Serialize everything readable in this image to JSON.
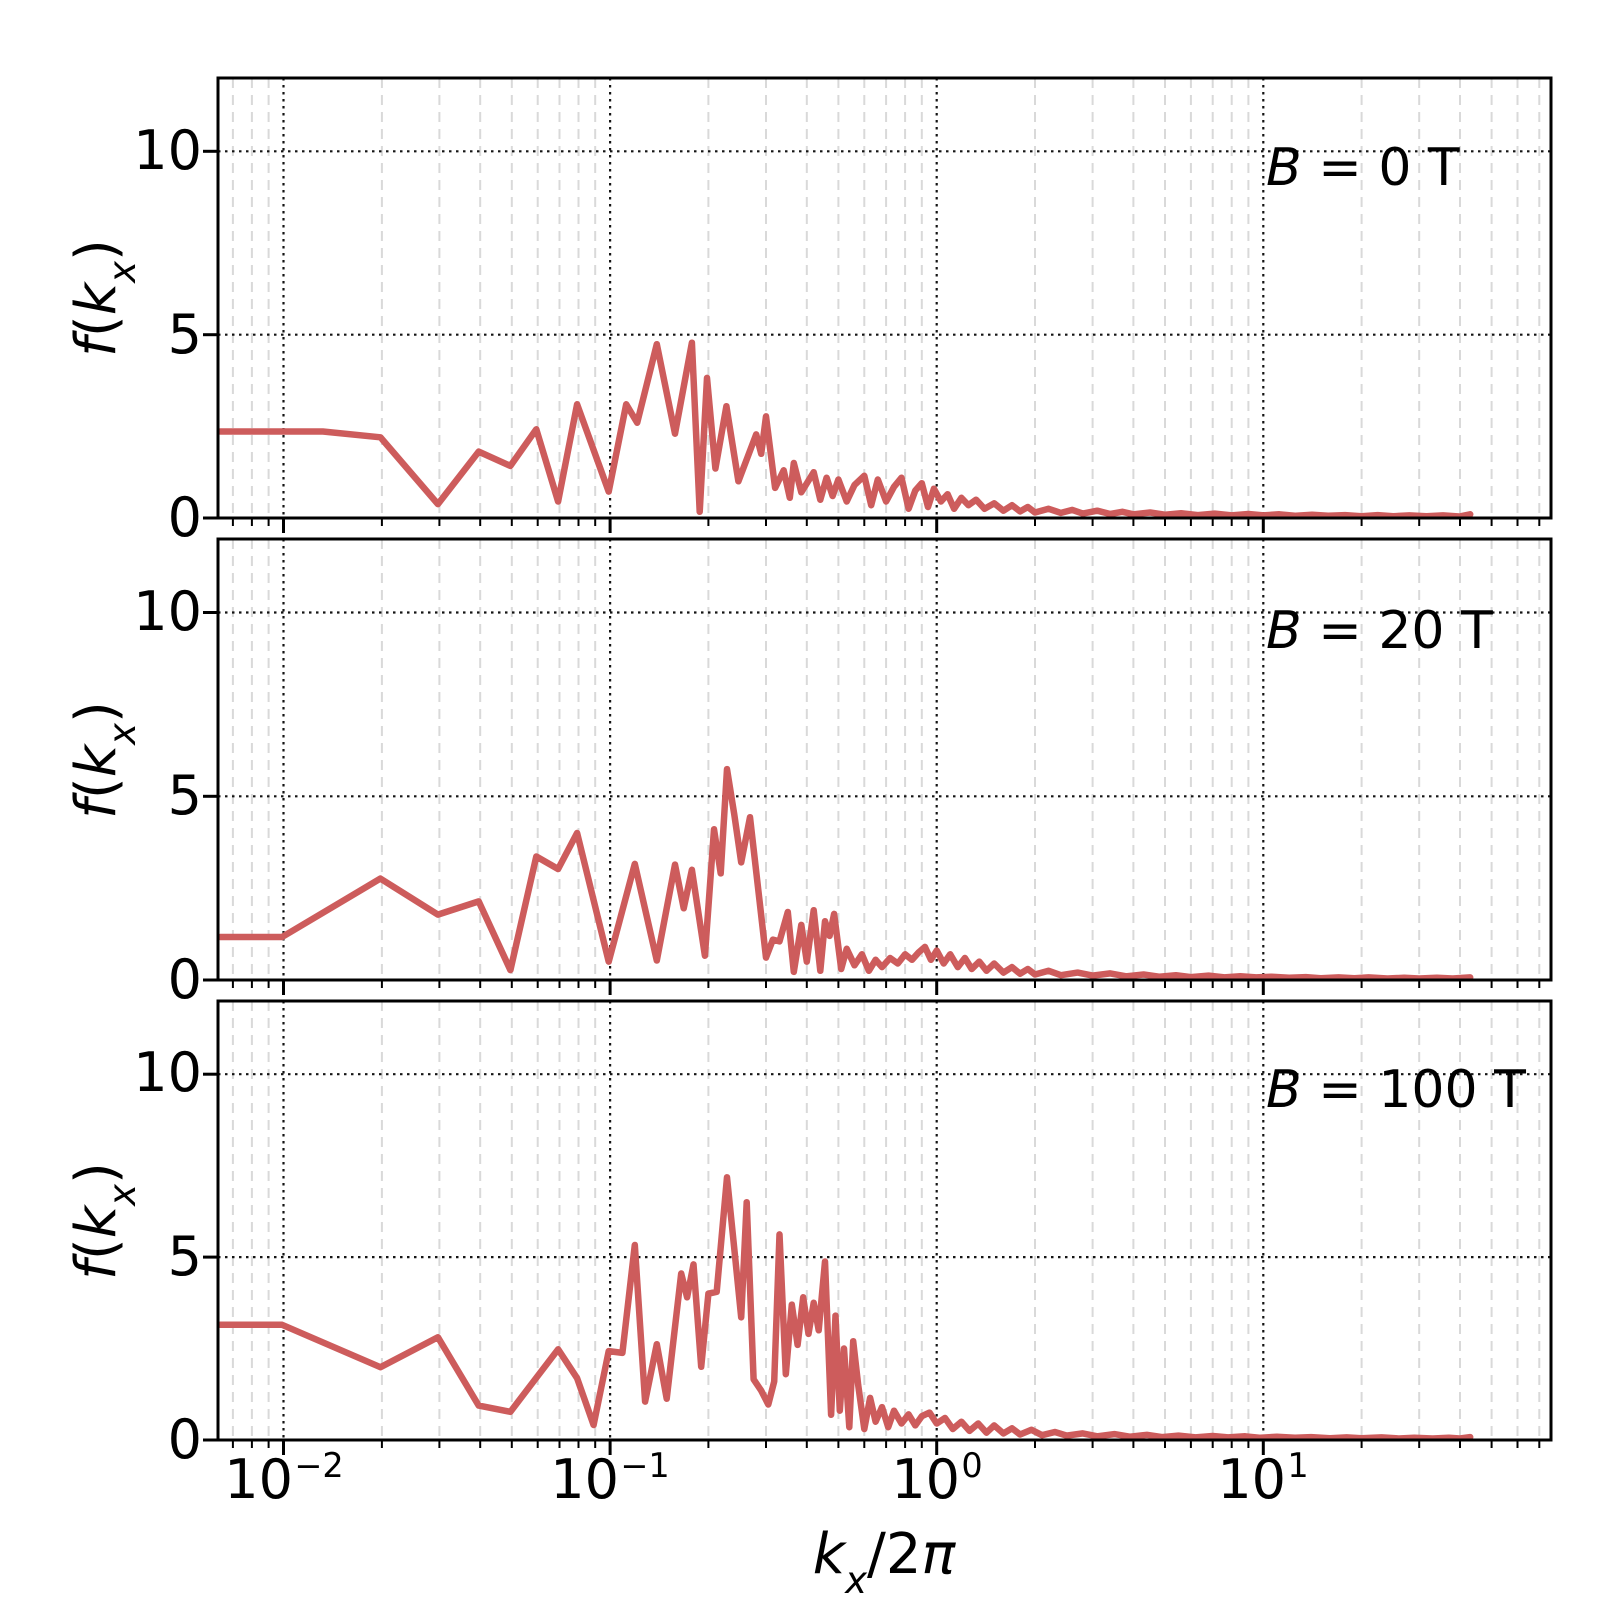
{
  "figure": {
    "background": "#ffffff",
    "line_color": "#cd5c5c",
    "grid_major_color": "#141414",
    "grid_minor_color": "#d9d9d9",
    "frame_color": "#000000",
    "xaxis": {
      "label_parts": {
        "k": "k",
        "sub": "x",
        "rest": "/2",
        "pi": "π"
      },
      "ticks": [
        {
          "base": "10",
          "exp": "−2"
        },
        {
          "base": "10",
          "exp": "−1"
        },
        {
          "base": "10",
          "exp": "0"
        },
        {
          "base": "10",
          "exp": "1"
        }
      ]
    },
    "yaxis": {
      "label_parts": {
        "f": "f",
        "open": "(",
        "k": "k",
        "sub": "x",
        "close": ")"
      },
      "ticks": [
        "0",
        "5",
        "10"
      ]
    },
    "panels": [
      {
        "label_var": "B",
        "label_rest": " = 0 T"
      },
      {
        "label_var": "B",
        "label_rest": " = 20 T"
      },
      {
        "label_var": "B",
        "label_rest": " = 100 T"
      }
    ]
  },
  "chart_data": [
    {
      "type": "line",
      "title": "B = 0 T",
      "xlabel": "k_x/2pi",
      "ylabel": "f(k_x)",
      "xscale": "log",
      "xlim": [
        0.0063,
        76
      ],
      "ylim": [
        0,
        12
      ],
      "xticks": [
        0.01,
        0.1,
        1,
        10
      ],
      "yticks": [
        0,
        5,
        10
      ],
      "grid": true,
      "legend": "none",
      "color": "#cd5c5c",
      "points": [
        [
          0.0064,
          2.36
        ],
        [
          0.0132,
          2.36
        ],
        [
          0.0198,
          2.2
        ],
        [
          0.0297,
          0.38
        ],
        [
          0.0396,
          1.81
        ],
        [
          0.0495,
          1.42
        ],
        [
          0.0594,
          2.42
        ],
        [
          0.0693,
          0.45
        ],
        [
          0.0792,
          3.1
        ],
        [
          0.099,
          0.72
        ],
        [
          0.112,
          3.1
        ],
        [
          0.121,
          2.6
        ],
        [
          0.139,
          4.74
        ],
        [
          0.158,
          2.3
        ],
        [
          0.178,
          4.78
        ],
        [
          0.188,
          0.17
        ],
        [
          0.198,
          3.82
        ],
        [
          0.21,
          1.35
        ],
        [
          0.227,
          3.05
        ],
        [
          0.247,
          1.0
        ],
        [
          0.28,
          2.28
        ],
        [
          0.29,
          1.75
        ],
        [
          0.3,
          2.77
        ],
        [
          0.32,
          0.82
        ],
        [
          0.34,
          1.3
        ],
        [
          0.355,
          0.55
        ],
        [
          0.365,
          1.5
        ],
        [
          0.385,
          0.7
        ],
        [
          0.42,
          1.25
        ],
        [
          0.44,
          0.5
        ],
        [
          0.46,
          1.1
        ],
        [
          0.48,
          0.6
        ],
        [
          0.5,
          1.05
        ],
        [
          0.53,
          0.45
        ],
        [
          0.56,
          0.9
        ],
        [
          0.6,
          1.15
        ],
        [
          0.63,
          0.35
        ],
        [
          0.66,
          1.05
        ],
        [
          0.7,
          0.45
        ],
        [
          0.74,
          0.85
        ],
        [
          0.78,
          1.1
        ],
        [
          0.82,
          0.25
        ],
        [
          0.86,
          0.75
        ],
        [
          0.9,
          0.95
        ],
        [
          0.94,
          0.3
        ],
        [
          0.98,
          0.8
        ],
        [
          1.03,
          0.45
        ],
        [
          1.08,
          0.65
        ],
        [
          1.13,
          0.25
        ],
        [
          1.19,
          0.55
        ],
        [
          1.25,
          0.35
        ],
        [
          1.32,
          0.5
        ],
        [
          1.4,
          0.25
        ],
        [
          1.5,
          0.4
        ],
        [
          1.6,
          0.2
        ],
        [
          1.7,
          0.35
        ],
        [
          1.8,
          0.18
        ],
        [
          1.9,
          0.3
        ],
        [
          2.0,
          0.15
        ],
        [
          2.2,
          0.25
        ],
        [
          2.4,
          0.14
        ],
        [
          2.6,
          0.22
        ],
        [
          2.8,
          0.12
        ],
        [
          3.1,
          0.2
        ],
        [
          3.4,
          0.11
        ],
        [
          3.7,
          0.17
        ],
        [
          4.0,
          0.1
        ],
        [
          4.5,
          0.15
        ],
        [
          5.0,
          0.09
        ],
        [
          5.6,
          0.13
        ],
        [
          6.3,
          0.08
        ],
        [
          7.1,
          0.12
        ],
        [
          8.0,
          0.07
        ],
        [
          9.0,
          0.11
        ],
        [
          10.0,
          0.07
        ],
        [
          11.2,
          0.1
        ],
        [
          12.6,
          0.06
        ],
        [
          14.1,
          0.09
        ],
        [
          15.8,
          0.06
        ],
        [
          17.8,
          0.08
        ],
        [
          20.0,
          0.05
        ],
        [
          22.4,
          0.08
        ],
        [
          25.0,
          0.05
        ],
        [
          28.0,
          0.07
        ],
        [
          31.6,
          0.05
        ],
        [
          35.5,
          0.07
        ],
        [
          39.8,
          0.04
        ],
        [
          43.0,
          0.1
        ]
      ]
    },
    {
      "type": "line",
      "title": "B = 20 T",
      "xlabel": "k_x/2pi",
      "ylabel": "f(k_x)",
      "xscale": "log",
      "xlim": [
        0.0063,
        76
      ],
      "ylim": [
        0,
        12
      ],
      "xticks": [
        0.01,
        0.1,
        1,
        10
      ],
      "yticks": [
        0,
        5,
        10
      ],
      "grid": true,
      "legend": "none",
      "color": "#cd5c5c",
      "points": [
        [
          0.0064,
          1.17
        ],
        [
          0.0099,
          1.17
        ],
        [
          0.0198,
          2.76
        ],
        [
          0.0297,
          1.78
        ],
        [
          0.0396,
          2.14
        ],
        [
          0.0495,
          0.27
        ],
        [
          0.0594,
          3.36
        ],
        [
          0.0693,
          3.02
        ],
        [
          0.0792,
          4.0
        ],
        [
          0.099,
          0.5
        ],
        [
          0.119,
          3.16
        ],
        [
          0.139,
          0.53
        ],
        [
          0.158,
          3.14
        ],
        [
          0.168,
          1.95
        ],
        [
          0.178,
          3.0
        ],
        [
          0.195,
          0.66
        ],
        [
          0.208,
          4.1
        ],
        [
          0.218,
          2.9
        ],
        [
          0.228,
          5.74
        ],
        [
          0.24,
          4.5
        ],
        [
          0.252,
          3.2
        ],
        [
          0.268,
          4.43
        ],
        [
          0.3,
          0.61
        ],
        [
          0.315,
          1.1
        ],
        [
          0.33,
          1.05
        ],
        [
          0.35,
          1.85
        ],
        [
          0.365,
          0.22
        ],
        [
          0.385,
          1.5
        ],
        [
          0.4,
          0.5
        ],
        [
          0.42,
          1.9
        ],
        [
          0.44,
          0.25
        ],
        [
          0.455,
          1.6
        ],
        [
          0.47,
          1.2
        ],
        [
          0.485,
          1.8
        ],
        [
          0.51,
          0.3
        ],
        [
          0.53,
          0.85
        ],
        [
          0.56,
          0.4
        ],
        [
          0.59,
          0.7
        ],
        [
          0.62,
          0.25
        ],
        [
          0.65,
          0.55
        ],
        [
          0.68,
          0.35
        ],
        [
          0.72,
          0.6
        ],
        [
          0.76,
          0.45
        ],
        [
          0.8,
          0.7
        ],
        [
          0.84,
          0.55
        ],
        [
          0.88,
          0.75
        ],
        [
          0.92,
          0.9
        ],
        [
          0.96,
          0.55
        ],
        [
          1.0,
          0.8
        ],
        [
          1.05,
          0.45
        ],
        [
          1.1,
          0.7
        ],
        [
          1.16,
          0.35
        ],
        [
          1.22,
          0.6
        ],
        [
          1.28,
          0.3
        ],
        [
          1.35,
          0.5
        ],
        [
          1.42,
          0.25
        ],
        [
          1.5,
          0.45
        ],
        [
          1.6,
          0.2
        ],
        [
          1.7,
          0.35
        ],
        [
          1.8,
          0.17
        ],
        [
          1.9,
          0.3
        ],
        [
          2.0,
          0.15
        ],
        [
          2.2,
          0.25
        ],
        [
          2.4,
          0.13
        ],
        [
          2.7,
          0.2
        ],
        [
          3.0,
          0.12
        ],
        [
          3.4,
          0.18
        ],
        [
          3.8,
          0.1
        ],
        [
          4.3,
          0.15
        ],
        [
          4.8,
          0.09
        ],
        [
          5.4,
          0.13
        ],
        [
          6.0,
          0.08
        ],
        [
          6.8,
          0.12
        ],
        [
          7.6,
          0.07
        ],
        [
          8.5,
          0.1
        ],
        [
          9.5,
          0.07
        ],
        [
          10.6,
          0.09
        ],
        [
          12.0,
          0.06
        ],
        [
          13.5,
          0.08
        ],
        [
          15.0,
          0.05
        ],
        [
          17.0,
          0.07
        ],
        [
          19.0,
          0.05
        ],
        [
          21.0,
          0.07
        ],
        [
          24.0,
          0.04
        ],
        [
          27.0,
          0.06
        ],
        [
          30.0,
          0.04
        ],
        [
          34.0,
          0.06
        ],
        [
          38.0,
          0.04
        ],
        [
          43.0,
          0.07
        ]
      ]
    },
    {
      "type": "line",
      "title": "B = 100 T",
      "xlabel": "k_x/2pi",
      "ylabel": "f(k_x)",
      "xscale": "log",
      "xlim": [
        0.0063,
        76
      ],
      "ylim": [
        0,
        12
      ],
      "xticks": [
        0.01,
        0.1,
        1,
        10
      ],
      "yticks": [
        0,
        5,
        10
      ],
      "grid": true,
      "legend": "none",
      "color": "#cd5c5c",
      "points": [
        [
          0.0064,
          3.15
        ],
        [
          0.0099,
          3.15
        ],
        [
          0.0198,
          1.99
        ],
        [
          0.0297,
          2.81
        ],
        [
          0.0396,
          0.94
        ],
        [
          0.0495,
          0.77
        ],
        [
          0.0594,
          1.7
        ],
        [
          0.0693,
          2.48
        ],
        [
          0.0792,
          1.69
        ],
        [
          0.089,
          0.41
        ],
        [
          0.099,
          2.43
        ],
        [
          0.109,
          2.38
        ],
        [
          0.119,
          5.33
        ],
        [
          0.128,
          1.05
        ],
        [
          0.139,
          2.62
        ],
        [
          0.149,
          1.13
        ],
        [
          0.165,
          4.55
        ],
        [
          0.172,
          3.9
        ],
        [
          0.18,
          4.8
        ],
        [
          0.19,
          2.0
        ],
        [
          0.2,
          4.0
        ],
        [
          0.212,
          4.05
        ],
        [
          0.228,
          7.18
        ],
        [
          0.242,
          4.9
        ],
        [
          0.252,
          3.35
        ],
        [
          0.262,
          6.5
        ],
        [
          0.275,
          1.66
        ],
        [
          0.29,
          1.35
        ],
        [
          0.305,
          0.97
        ],
        [
          0.318,
          1.6
        ],
        [
          0.33,
          5.62
        ],
        [
          0.345,
          1.8
        ],
        [
          0.36,
          3.7
        ],
        [
          0.375,
          2.6
        ],
        [
          0.39,
          3.9
        ],
        [
          0.405,
          2.9
        ],
        [
          0.42,
          3.75
        ],
        [
          0.435,
          3.0
        ],
        [
          0.455,
          4.88
        ],
        [
          0.475,
          0.69
        ],
        [
          0.49,
          3.4
        ],
        [
          0.505,
          0.8
        ],
        [
          0.52,
          2.5
        ],
        [
          0.54,
          0.35
        ],
        [
          0.555,
          2.7
        ],
        [
          0.575,
          1.5
        ],
        [
          0.6,
          0.3
        ],
        [
          0.625,
          1.15
        ],
        [
          0.65,
          0.5
        ],
        [
          0.68,
          0.9
        ],
        [
          0.71,
          0.35
        ],
        [
          0.74,
          0.8
        ],
        [
          0.78,
          0.45
        ],
        [
          0.82,
          0.7
        ],
        [
          0.86,
          0.4
        ],
        [
          0.9,
          0.65
        ],
        [
          0.95,
          0.75
        ],
        [
          1.0,
          0.45
        ],
        [
          1.06,
          0.6
        ],
        [
          1.12,
          0.3
        ],
        [
          1.19,
          0.5
        ],
        [
          1.26,
          0.25
        ],
        [
          1.34,
          0.45
        ],
        [
          1.42,
          0.2
        ],
        [
          1.5,
          0.4
        ],
        [
          1.6,
          0.18
        ],
        [
          1.7,
          0.32
        ],
        [
          1.8,
          0.15
        ],
        [
          1.95,
          0.28
        ],
        [
          2.1,
          0.13
        ],
        [
          2.3,
          0.22
        ],
        [
          2.5,
          0.12
        ],
        [
          2.8,
          0.18
        ],
        [
          3.1,
          0.1
        ],
        [
          3.5,
          0.16
        ],
        [
          3.9,
          0.09
        ],
        [
          4.4,
          0.14
        ],
        [
          4.9,
          0.08
        ],
        [
          5.5,
          0.12
        ],
        [
          6.2,
          0.07
        ],
        [
          7.0,
          0.11
        ],
        [
          7.8,
          0.07
        ],
        [
          8.8,
          0.1
        ],
        [
          9.8,
          0.06
        ],
        [
          11.0,
          0.09
        ],
        [
          12.5,
          0.06
        ],
        [
          14.0,
          0.08
        ],
        [
          16.0,
          0.05
        ],
        [
          18.0,
          0.07
        ],
        [
          20.0,
          0.05
        ],
        [
          23.0,
          0.07
        ],
        [
          26.0,
          0.04
        ],
        [
          29.0,
          0.06
        ],
        [
          33.0,
          0.04
        ],
        [
          37.0,
          0.06
        ],
        [
          40.0,
          0.04
        ],
        [
          43.0,
          0.08
        ]
      ]
    }
  ]
}
